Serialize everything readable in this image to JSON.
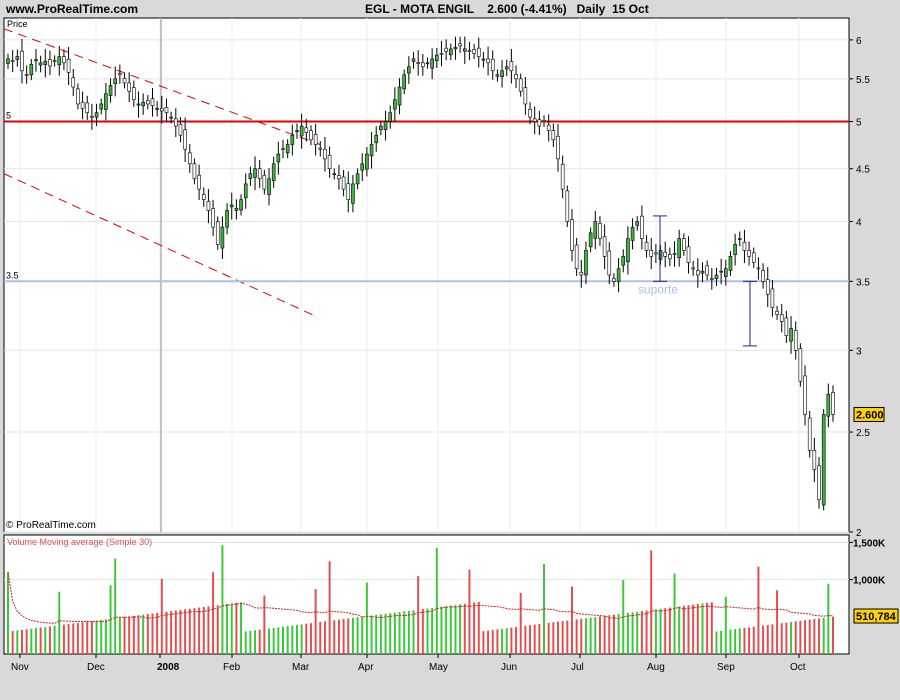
{
  "header": {
    "site": "www.ProRealTime.com",
    "instrument": "EGL - MOTA ENGIL",
    "price": "2.600",
    "change": "(-4.41%)",
    "period": "Daily",
    "date": "15 Oct"
  },
  "copyright": "© ProRealTime.com",
  "chart_data": [
    {
      "type": "candlestick",
      "title": "EGL - MOTA ENGIL",
      "ylabel": "Price",
      "ylim": [
        2.0,
        6.3
      ],
      "yscale": "log",
      "yticks": [
        "6",
        "5.5",
        "5",
        "4.5",
        "4",
        "3.5",
        "3",
        "2.5",
        "2"
      ],
      "current_price_label": "2.600",
      "months": [
        "Nov",
        "Dec",
        "2008",
        "Feb",
        "Mar",
        "Apr",
        "May",
        "Jun",
        "Jul",
        "Aug",
        "Sep",
        "Oct"
      ],
      "horizontal_lines": [
        {
          "label": "5",
          "value": 5.0,
          "color": "#e00000"
        },
        {
          "label": "3.5",
          "value": 3.5,
          "color": "#a8c0f0"
        }
      ],
      "annotation_text": "suporte",
      "closes": [
        5.75,
        5.72,
        5.78,
        5.6,
        5.55,
        5.68,
        5.74,
        5.7,
        5.72,
        5.66,
        5.72,
        5.78,
        5.7,
        5.58,
        5.4,
        5.2,
        5.15,
        5.1,
        5.05,
        5.1,
        5.2,
        5.32,
        5.42,
        5.5,
        5.55,
        5.45,
        5.35,
        5.25,
        5.2,
        5.22,
        5.2,
        5.18,
        5.15,
        5.12,
        5.1,
        5.05,
        4.95,
        4.85,
        4.7,
        4.55,
        4.4,
        4.3,
        4.2,
        4.1,
        3.95,
        3.8,
        3.95,
        4.1,
        4.15,
        4.12,
        4.2,
        4.35,
        4.45,
        4.5,
        4.4,
        4.3,
        4.4,
        4.55,
        4.65,
        4.7,
        4.75,
        4.85,
        4.9,
        4.95,
        4.88,
        4.8,
        4.75,
        4.7,
        4.6,
        4.5,
        4.45,
        4.4,
        4.3,
        4.2,
        4.35,
        4.45,
        4.55,
        4.65,
        4.75,
        4.85,
        4.95,
        5.0,
        5.1,
        5.25,
        5.4,
        5.55,
        5.65,
        5.75,
        5.7,
        5.65,
        5.7,
        5.75,
        5.8,
        5.82,
        5.85,
        5.88,
        5.9,
        5.92,
        5.88,
        5.85,
        5.82,
        5.78,
        5.75,
        5.7,
        5.6,
        5.55,
        5.6,
        5.65,
        5.6,
        5.5,
        5.35,
        5.2,
        5.05,
        5.0,
        4.95,
        5.0,
        4.9,
        4.8,
        4.6,
        4.3,
        4.0,
        3.75,
        3.6,
        3.55,
        3.75,
        3.9,
        4.0,
        3.85,
        3.7,
        3.55,
        3.5,
        3.6,
        3.7,
        3.85,
        3.95,
        4.0,
        3.85,
        3.75,
        3.7,
        3.72,
        3.75,
        3.7,
        3.68,
        3.72,
        3.85,
        3.75,
        3.65,
        3.6,
        3.55,
        3.58,
        3.55,
        3.52,
        3.55,
        3.58,
        3.6,
        3.7,
        3.8,
        3.85,
        3.75,
        3.7,
        3.65,
        3.6,
        3.5,
        3.4,
        3.3,
        3.25,
        3.2,
        3.1,
        3.15,
        3.0,
        2.8,
        2.6,
        2.4,
        2.3,
        2.15,
        2.6,
        2.72,
        2.6
      ]
    },
    {
      "type": "bar",
      "title": "Volume Moving average (Simple 30)",
      "ylim": [
        0,
        1600000
      ],
      "yticks": [
        "1,500K",
        "1,000K"
      ],
      "current_volume_label": "510,784",
      "colors": {
        "up": "#3cc83c",
        "down": "#e05050",
        "ma": "#d02020"
      }
    }
  ]
}
